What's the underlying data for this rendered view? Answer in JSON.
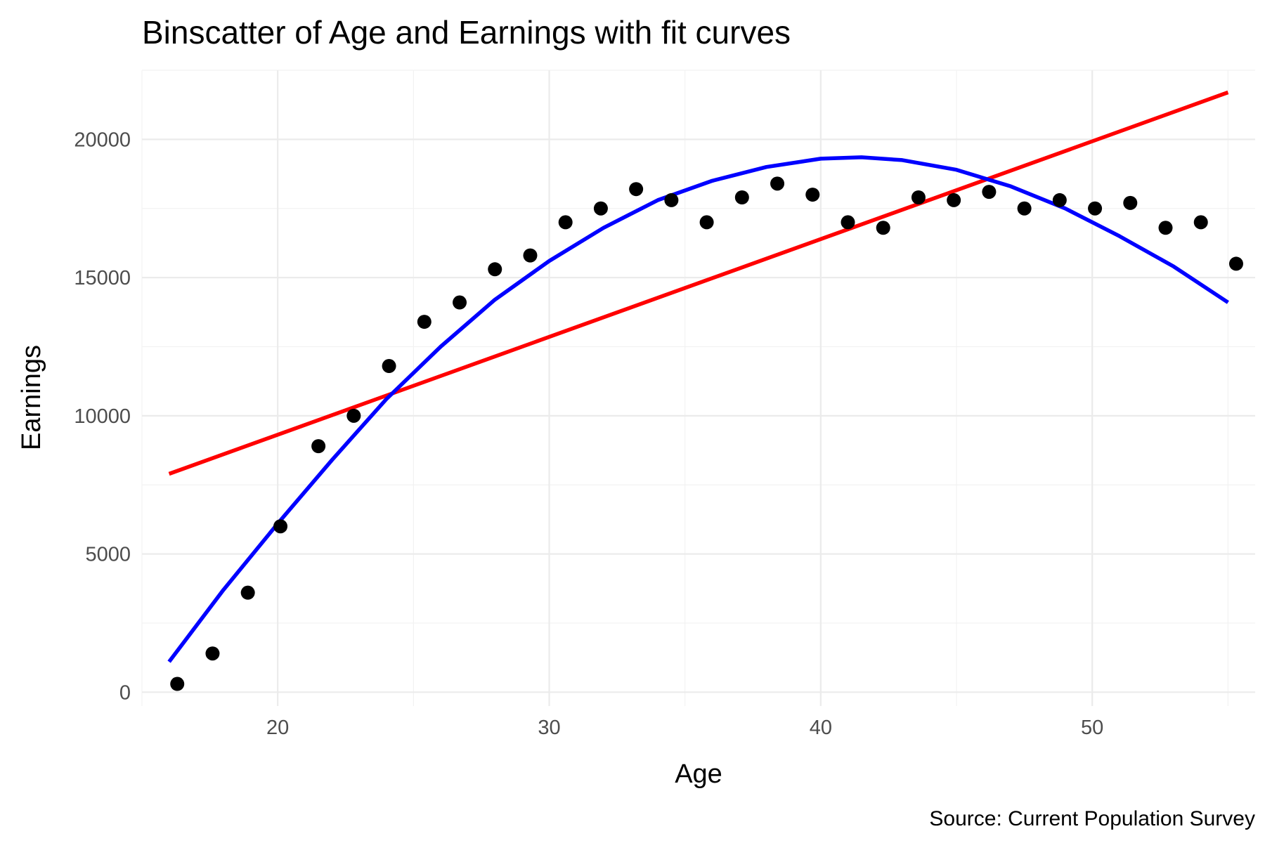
{
  "chart_data": {
    "type": "scatter",
    "title": "Binscatter of Age and Earnings with fit curves",
    "xlabel": "Age",
    "ylabel": "Earnings",
    "caption": "Source: Current Population Survey",
    "xlim": [
      15,
      56
    ],
    "ylim": [
      -500,
      22500
    ],
    "x_ticks": [
      20,
      30,
      40,
      50
    ],
    "y_ticks": [
      0,
      5000,
      10000,
      15000,
      20000
    ],
    "grid": true,
    "legend": "none",
    "colors": {
      "points": "#000000",
      "linear_fit": "#ff0000",
      "quadratic_fit": "#0000ff"
    },
    "series": [
      {
        "kind": "points",
        "x": [
          16.3,
          17.6,
          18.9,
          20.1,
          21.5,
          22.8,
          24.1,
          25.4,
          26.7,
          28.0,
          29.3,
          30.6,
          31.9,
          33.2,
          34.5,
          35.8,
          37.1,
          38.4,
          39.7,
          41.0,
          42.3,
          43.6,
          44.9,
          46.2,
          47.5,
          48.8,
          50.1,
          51.4,
          52.7,
          54.0,
          55.3
        ],
        "y": [
          300,
          1400,
          3600,
          6000,
          8900,
          10000,
          11800,
          13400,
          14100,
          15300,
          15800,
          17000,
          17500,
          18200,
          17800,
          17000,
          17900,
          18400,
          18000,
          17000,
          16800,
          17900,
          17800,
          18100,
          17500,
          17800,
          17500,
          17700,
          16800,
          17000,
          15500
        ]
      },
      {
        "kind": "line",
        "x": [
          16.0,
          55.0
        ],
        "y": [
          7900,
          21700
        ]
      },
      {
        "kind": "line",
        "x": [
          16.0,
          18.0,
          20.0,
          22.0,
          24.0,
          26.0,
          28.0,
          30.0,
          32.0,
          34.0,
          36.0,
          38.0,
          40.0,
          41.5,
          43.0,
          45.0,
          47.0,
          49.0,
          51.0,
          53.0,
          55.0
        ],
        "y": [
          1100,
          3700,
          6100,
          8400,
          10600,
          12500,
          14200,
          15600,
          16800,
          17800,
          18500,
          19000,
          19300,
          19350,
          19250,
          18900,
          18300,
          17500,
          16500,
          15400,
          14100
        ]
      }
    ]
  }
}
